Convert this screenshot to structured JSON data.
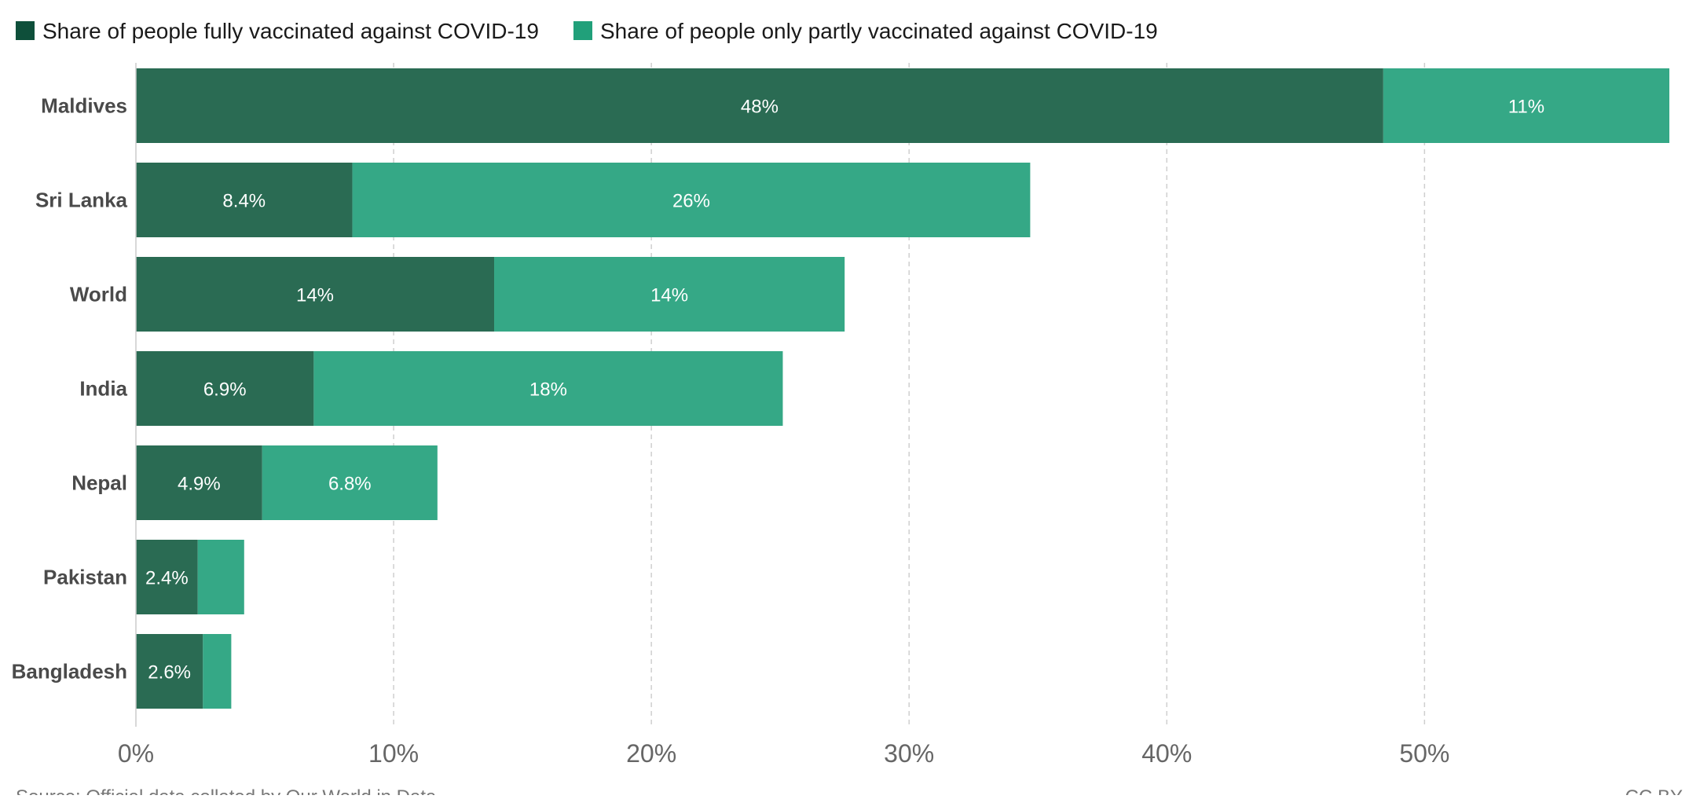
{
  "colors": {
    "fully": "#2a6b53",
    "partly": "#35a886",
    "legend_fully": "#0e4f3a",
    "legend_partly": "#21a07a",
    "grid": "#cfcfcf",
    "axis": "#cccccc"
  },
  "footer": {
    "source": "Source: Official data collated by Our World in Data",
    "license": "CC BY"
  },
  "chart_data": {
    "type": "bar",
    "orientation": "horizontal",
    "stacked": true,
    "categories": [
      "Maldives",
      "Sri Lanka",
      "World",
      "India",
      "Nepal",
      "Pakistan",
      "Bangladesh"
    ],
    "series": [
      {
        "name": "Share of people fully vaccinated against COVID-19",
        "values": [
          48.4,
          8.4,
          13.9,
          6.9,
          4.9,
          2.4,
          2.6
        ],
        "labels": [
          "48%",
          "8.4%",
          "14%",
          "6.9%",
          "4.9%",
          "2.4%",
          "2.6%"
        ]
      },
      {
        "name": "Share of people only partly vaccinated against COVID-19",
        "values": [
          11.1,
          26.3,
          13.6,
          18.2,
          6.8,
          1.8,
          1.1
        ],
        "labels": [
          "11%",
          "26%",
          "14%",
          "18%",
          "6.8%",
          "",
          ""
        ]
      }
    ],
    "xlim": [
      0,
      59.5
    ],
    "ticks": [
      0,
      10,
      20,
      30,
      40,
      50
    ],
    "tick_labels": [
      "0%",
      "10%",
      "20%",
      "30%",
      "40%",
      "50%"
    ],
    "grid": true,
    "legend_position": "top-left"
  }
}
